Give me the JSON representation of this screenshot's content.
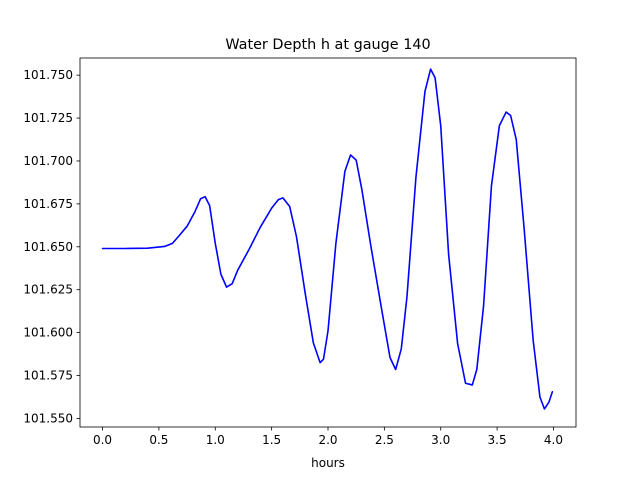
{
  "chart_data": {
    "type": "line",
    "title": "Water Depth h at gauge 140",
    "xlabel": "hours",
    "ylabel": "",
    "xlim": [
      -0.2,
      4.2
    ],
    "ylim": [
      101.545,
      101.76
    ],
    "xticks": [
      0.0,
      0.5,
      1.0,
      1.5,
      2.0,
      2.5,
      3.0,
      3.5,
      4.0
    ],
    "xtick_labels": [
      "0.0",
      "0.5",
      "1.0",
      "1.5",
      "2.0",
      "2.5",
      "3.0",
      "3.5",
      "4.0"
    ],
    "yticks": [
      101.55,
      101.575,
      101.6,
      101.625,
      101.65,
      101.675,
      101.7,
      101.725,
      101.75
    ],
    "ytick_labels": [
      "101.550",
      "101.575",
      "101.600",
      "101.625",
      "101.650",
      "101.675",
      "101.700",
      "101.725",
      "101.750"
    ],
    "grid": false,
    "series": [
      {
        "color": "#0000ff",
        "x": [
          0.0,
          0.2,
          0.4,
          0.55,
          0.62,
          0.68,
          0.75,
          0.82,
          0.87,
          0.91,
          0.95,
          1.0,
          1.05,
          1.1,
          1.15,
          1.2,
          1.3,
          1.4,
          1.5,
          1.56,
          1.6,
          1.66,
          1.72,
          1.8,
          1.87,
          1.93,
          1.96,
          2.0,
          2.07,
          2.15,
          2.2,
          2.25,
          2.3,
          2.38,
          2.48,
          2.55,
          2.6,
          2.65,
          2.7,
          2.78,
          2.86,
          2.91,
          2.95,
          3.0,
          3.07,
          3.15,
          3.22,
          3.28,
          3.32,
          3.38,
          3.45,
          3.52,
          3.58,
          3.62,
          3.67,
          3.74,
          3.82,
          3.88,
          3.92,
          3.96,
          3.99
        ],
        "y": [
          101.649,
          101.649,
          101.6492,
          101.6502,
          101.652,
          101.6565,
          101.662,
          101.6705,
          101.678,
          101.6792,
          101.674,
          101.652,
          101.634,
          101.6265,
          101.6285,
          101.6365,
          101.6485,
          101.6615,
          101.6725,
          101.6775,
          101.6785,
          101.6735,
          101.656,
          101.622,
          101.594,
          101.5825,
          101.5845,
          101.601,
          101.652,
          101.694,
          101.7035,
          101.7005,
          101.6835,
          101.6505,
          101.612,
          101.5855,
          101.5785,
          101.5905,
          101.6205,
          101.6905,
          101.7405,
          101.7535,
          101.7485,
          101.7205,
          101.6455,
          101.5935,
          101.5705,
          101.5695,
          101.5785,
          101.6155,
          101.6855,
          101.7205,
          101.7285,
          101.7265,
          101.7125,
          101.6605,
          101.5955,
          101.5625,
          101.5555,
          101.5595,
          101.5655
        ]
      }
    ]
  }
}
